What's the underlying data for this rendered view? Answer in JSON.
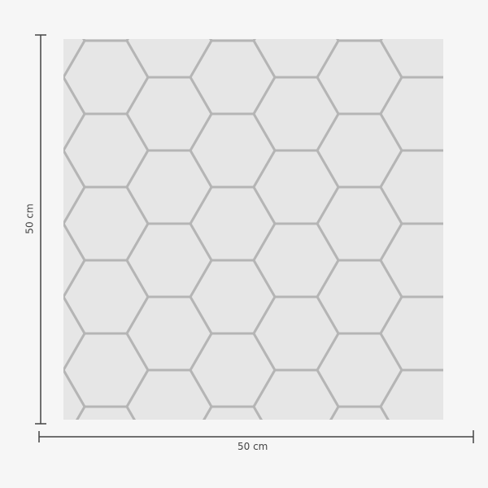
{
  "product": {
    "pattern": "hexagon",
    "surface_color": "#e6e6e6",
    "grout_color": "#b5b5b5"
  },
  "dimensions": {
    "width_label": "50 cm",
    "height_label": "50 cm",
    "line_color": "#444444"
  }
}
